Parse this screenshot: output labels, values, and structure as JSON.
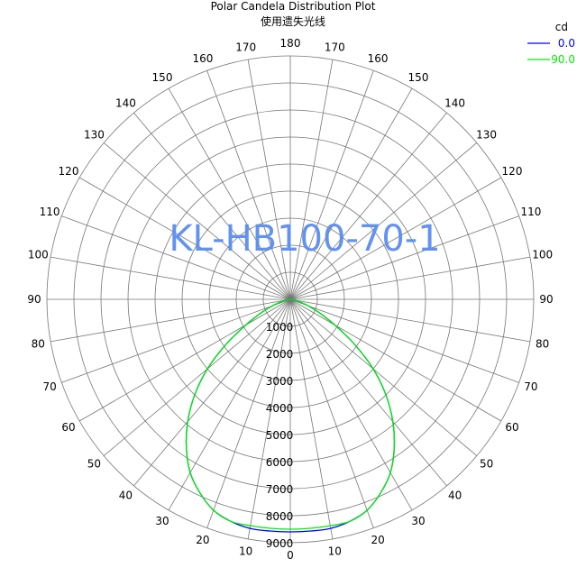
{
  "chart_data": {
    "type": "polar",
    "title": "Polar Candela Distribution Plot",
    "subtitle": "使用遗失光线",
    "watermark": "KL-HB100-70-1",
    "watermark_color": "#5b8def",
    "unit_label": "cd",
    "radial_ticks": [
      1000,
      2000,
      3000,
      4000,
      5000,
      6000,
      7000,
      8000,
      9000
    ],
    "r_max": 9000,
    "angle_labels_left": [
      "0",
      "10",
      "20",
      "30",
      "40",
      "50",
      "60",
      "70",
      "80",
      "90",
      "100",
      "110",
      "120",
      "130",
      "140",
      "150",
      "160",
      "170",
      "180"
    ],
    "angle_labels_right": [
      "10",
      "20",
      "30",
      "40",
      "50",
      "60",
      "70",
      "80",
      "90",
      "100",
      "110",
      "120",
      "130",
      "140",
      "150",
      "160",
      "170"
    ],
    "series": [
      {
        "name": "0.0",
        "color": "#0000ff",
        "points": [
          [
            -90,
            0
          ],
          [
            -80,
            150
          ],
          [
            -75,
            350
          ],
          [
            -70,
            700
          ],
          [
            -65,
            1200
          ],
          [
            -60,
            1900
          ],
          [
            -55,
            2900
          ],
          [
            -50,
            4000
          ],
          [
            -45,
            5000
          ],
          [
            -40,
            5900
          ],
          [
            -35,
            6700
          ],
          [
            -30,
            7400
          ],
          [
            -25,
            7900
          ],
          [
            -20,
            8300
          ],
          [
            -15,
            8500
          ],
          [
            -10,
            8600
          ],
          [
            -5,
            8600
          ],
          [
            0,
            8600
          ],
          [
            5,
            8600
          ],
          [
            10,
            8600
          ],
          [
            15,
            8500
          ],
          [
            20,
            8300
          ],
          [
            25,
            7900
          ],
          [
            30,
            7400
          ],
          [
            35,
            6700
          ],
          [
            40,
            5900
          ],
          [
            45,
            5000
          ],
          [
            50,
            4000
          ],
          [
            55,
            2900
          ],
          [
            60,
            1900
          ],
          [
            65,
            1200
          ],
          [
            70,
            700
          ],
          [
            75,
            350
          ],
          [
            80,
            150
          ],
          [
            90,
            0
          ]
        ]
      },
      {
        "name": "90.0",
        "color": "#00ee00",
        "points": [
          [
            -90,
            0
          ],
          [
            -80,
            150
          ],
          [
            -75,
            350
          ],
          [
            -70,
            700
          ],
          [
            -65,
            1200
          ],
          [
            -60,
            1900
          ],
          [
            -55,
            2900
          ],
          [
            -50,
            4000
          ],
          [
            -45,
            5000
          ],
          [
            -40,
            5900
          ],
          [
            -35,
            6700
          ],
          [
            -30,
            7400
          ],
          [
            -25,
            7900
          ],
          [
            -20,
            8300
          ],
          [
            -15,
            8500
          ],
          [
            -10,
            8500
          ],
          [
            -5,
            8500
          ],
          [
            0,
            8500
          ],
          [
            5,
            8500
          ],
          [
            10,
            8500
          ],
          [
            15,
            8500
          ],
          [
            20,
            8300
          ],
          [
            25,
            7900
          ],
          [
            30,
            7400
          ],
          [
            35,
            6700
          ],
          [
            40,
            5900
          ],
          [
            45,
            5000
          ],
          [
            50,
            4000
          ],
          [
            55,
            2900
          ],
          [
            60,
            1900
          ],
          [
            65,
            1200
          ],
          [
            70,
            700
          ],
          [
            75,
            350
          ],
          [
            80,
            150
          ],
          [
            90,
            0
          ]
        ]
      }
    ],
    "grid": true,
    "legend_position": "top-right"
  }
}
